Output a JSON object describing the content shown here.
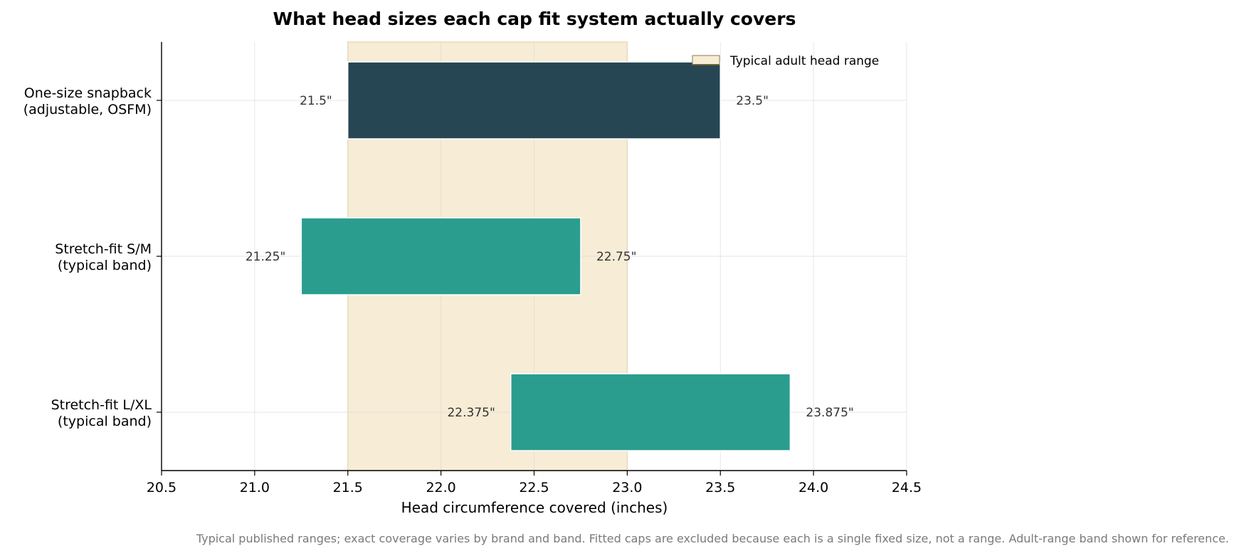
{
  "chart_data": {
    "type": "bar",
    "orientation": "horizontal-range",
    "title": "What head sizes each cap fit system actually covers",
    "xlabel": "Head circumference covered (inches)",
    "xlim": [
      20.5,
      24.5
    ],
    "xticks": [
      "20.5",
      "21.0",
      "21.5",
      "22.0",
      "22.5",
      "23.0",
      "23.5",
      "24.0",
      "24.5"
    ],
    "grid": true,
    "categories": [
      {
        "lines": [
          "One-size snapback",
          "(adjustable, OSFM)"
        ],
        "start": 21.5,
        "end": 23.5,
        "start_label": "21.5\"",
        "end_label": "23.5\"",
        "color": "#264653"
      },
      {
        "lines": [
          "Stretch-fit S/M",
          "(typical band)"
        ],
        "start": 21.25,
        "end": 22.75,
        "start_label": "21.25\"",
        "end_label": "22.75\"",
        "color": "#2a9d8f"
      },
      {
        "lines": [
          "Stretch-fit L/XL",
          "(typical band)"
        ],
        "start": 22.375,
        "end": 23.875,
        "start_label": "22.375\"",
        "end_label": "23.875\"",
        "color": "#2a9d8f"
      }
    ],
    "reference_band": {
      "start": 21.5,
      "end": 23.0,
      "label": "Typical adult head range",
      "color": "#f7ecd5"
    },
    "legend": {
      "placement": "top-right",
      "entries": [
        "Typical adult head range"
      ]
    },
    "footnote": "Typical published ranges; exact coverage varies by brand and band. Fitted caps are excluded because each is a single fixed size, not a range. Adult-range band shown for reference."
  }
}
